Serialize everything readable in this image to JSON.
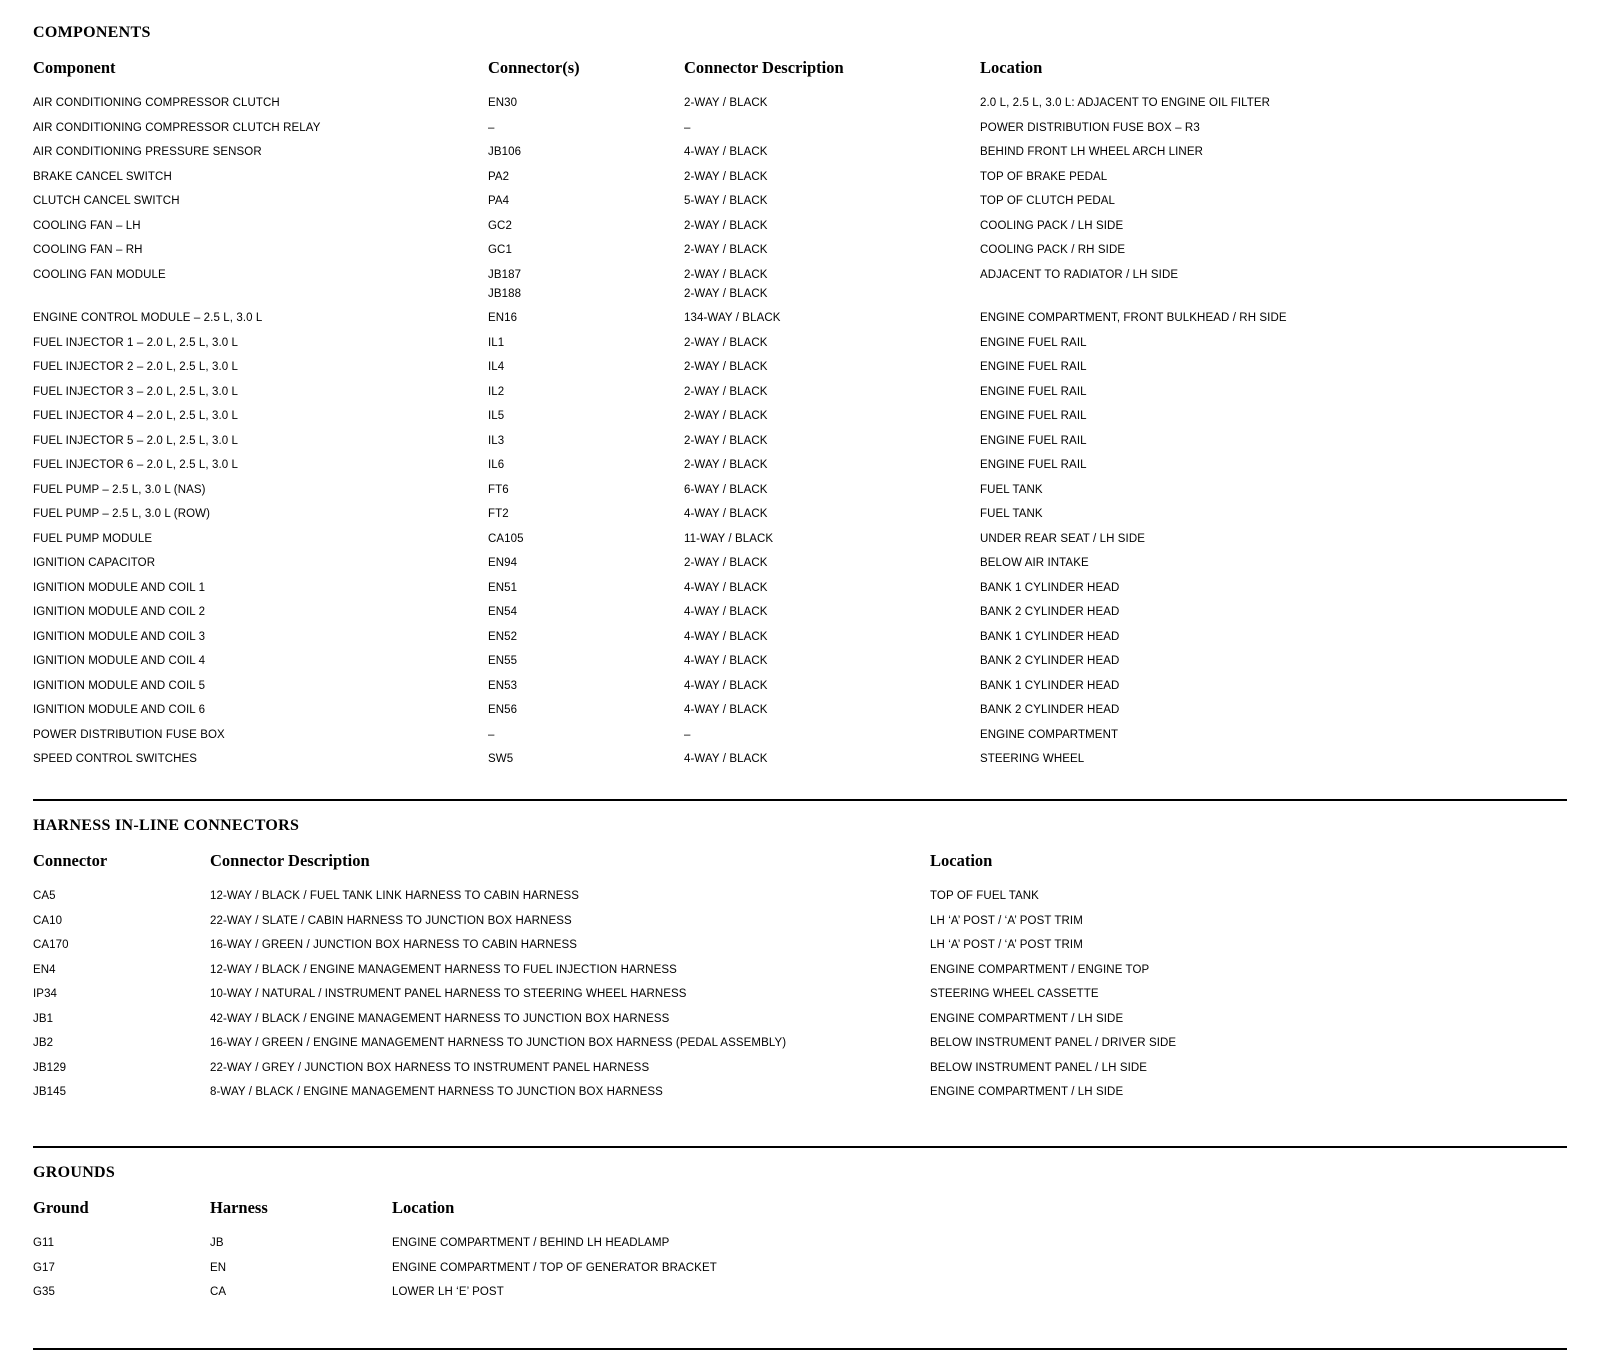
{
  "components": {
    "title": "COMPONENTS",
    "headers": [
      "Component",
      "Connector(s)",
      "Connector Description",
      "Location"
    ],
    "rows": [
      {
        "component": "AIR CONDITIONING COMPRESSOR CLUTCH",
        "connector": "EN30",
        "description": "2-WAY / BLACK",
        "location": "2.0 L, 2.5 L, 3.0 L:  ADJACENT TO ENGINE OIL FILTER"
      },
      {
        "component": "AIR CONDITIONING COMPRESSOR CLUTCH RELAY",
        "connector": "–",
        "description": "–",
        "location": "POWER DISTRIBUTION FUSE BOX – R3"
      },
      {
        "component": "AIR CONDITIONING PRESSURE SENSOR",
        "connector": "JB106",
        "description": "4-WAY / BLACK",
        "location": "BEHIND FRONT LH WHEEL ARCH LINER"
      },
      {
        "component": "BRAKE CANCEL SWITCH",
        "connector": "PA2",
        "description": "2-WAY / BLACK",
        "location": "TOP OF BRAKE PEDAL"
      },
      {
        "component": "CLUTCH CANCEL SWITCH",
        "connector": "PA4",
        "description": "5-WAY / BLACK",
        "location": "TOP OF CLUTCH PEDAL"
      },
      {
        "component": "COOLING FAN – LH",
        "connector": "GC2",
        "description": "2-WAY / BLACK",
        "location": "COOLING PACK / LH SIDE"
      },
      {
        "component": "COOLING FAN – RH",
        "connector": "GC1",
        "description": "2-WAY / BLACK",
        "location": "COOLING PACK / RH SIDE"
      },
      {
        "component": "COOLING FAN MODULE",
        "connector": "JB187\nJB188",
        "description": "2-WAY / BLACK\n2-WAY / BLACK",
        "location": "ADJACENT TO RADIATOR / LH SIDE"
      },
      {
        "component": "ENGINE CONTROL MODULE – 2.5 L, 3.0 L",
        "connector": "EN16",
        "description": "134-WAY / BLACK",
        "location": "ENGINE COMPARTMENT, FRONT BULKHEAD / RH SIDE"
      },
      {
        "component": "FUEL INJECTOR 1 – 2.0 L, 2.5 L, 3.0 L",
        "connector": "IL1",
        "description": "2-WAY / BLACK",
        "location": "ENGINE FUEL RAIL"
      },
      {
        "component": "FUEL INJECTOR 2 – 2.0 L, 2.5 L, 3.0 L",
        "connector": "IL4",
        "description": "2-WAY / BLACK",
        "location": "ENGINE FUEL RAIL"
      },
      {
        "component": "FUEL INJECTOR 3 – 2.0 L, 2.5 L, 3.0 L",
        "connector": "IL2",
        "description": "2-WAY / BLACK",
        "location": "ENGINE FUEL RAIL"
      },
      {
        "component": "FUEL INJECTOR 4 – 2.0 L, 2.5 L, 3.0 L",
        "connector": "IL5",
        "description": "2-WAY / BLACK",
        "location": "ENGINE FUEL RAIL"
      },
      {
        "component": "FUEL INJECTOR 5 – 2.0 L, 2.5 L, 3.0 L",
        "connector": "IL3",
        "description": "2-WAY / BLACK",
        "location": "ENGINE FUEL RAIL"
      },
      {
        "component": "FUEL INJECTOR 6 – 2.0 L, 2.5 L, 3.0 L",
        "connector": "IL6",
        "description": "2-WAY / BLACK",
        "location": "ENGINE FUEL RAIL"
      },
      {
        "component": "FUEL PUMP – 2.5 L, 3.0 L (NAS)",
        "connector": "FT6",
        "description": "6-WAY / BLACK",
        "location": "FUEL TANK"
      },
      {
        "component": "FUEL PUMP – 2.5 L, 3.0 L (ROW)",
        "connector": "FT2",
        "description": "4-WAY / BLACK",
        "location": "FUEL TANK"
      },
      {
        "component": "FUEL PUMP MODULE",
        "connector": "CA105",
        "description": "11-WAY / BLACK",
        "location": "UNDER REAR SEAT / LH SIDE"
      },
      {
        "component": "IGNITION CAPACITOR",
        "connector": "EN94",
        "description": "2-WAY / BLACK",
        "location": "BELOW AIR INTAKE"
      },
      {
        "component": "IGNITION MODULE AND COIL 1",
        "connector": "EN51",
        "description": "4-WAY / BLACK",
        "location": "BANK 1 CYLINDER HEAD"
      },
      {
        "component": "IGNITION MODULE AND COIL 2",
        "connector": "EN54",
        "description": "4-WAY / BLACK",
        "location": "BANK 2 CYLINDER HEAD"
      },
      {
        "component": "IGNITION MODULE AND COIL 3",
        "connector": "EN52",
        "description": "4-WAY / BLACK",
        "location": "BANK 1 CYLINDER HEAD"
      },
      {
        "component": "IGNITION MODULE AND COIL 4",
        "connector": "EN55",
        "description": "4-WAY / BLACK",
        "location": "BANK 2 CYLINDER HEAD"
      },
      {
        "component": "IGNITION MODULE AND COIL 5",
        "connector": "EN53",
        "description": "4-WAY / BLACK",
        "location": "BANK 1 CYLINDER HEAD"
      },
      {
        "component": "IGNITION MODULE AND COIL 6",
        "connector": "EN56",
        "description": "4-WAY / BLACK",
        "location": "BANK 2 CYLINDER HEAD"
      },
      {
        "component": "POWER DISTRIBUTION FUSE BOX",
        "connector": "–",
        "description": "–",
        "location": "ENGINE COMPARTMENT"
      },
      {
        "component": "SPEED CONTROL SWITCHES",
        "connector": "SW5",
        "description": "4-WAY / BLACK",
        "location": "STEERING WHEEL"
      }
    ]
  },
  "harness": {
    "title": "HARNESS IN-LINE CONNECTORS",
    "headers": [
      "Connector",
      "Connector Description",
      "Location"
    ],
    "rows": [
      {
        "connector": "CA5",
        "description": "12-WAY / BLACK / FUEL TANK LINK HARNESS TO CABIN HARNESS",
        "location": "TOP OF FUEL TANK"
      },
      {
        "connector": "CA10",
        "description": "22-WAY / SLATE / CABIN HARNESS TO JUNCTION BOX HARNESS",
        "location": "LH ‘A’ POST / ‘A’ POST TRIM"
      },
      {
        "connector": "CA170",
        "description": "16-WAY / GREEN / JUNCTION BOX HARNESS TO CABIN HARNESS",
        "location": "LH ‘A’ POST / ‘A’ POST TRIM"
      },
      {
        "connector": "EN4",
        "description": "12-WAY / BLACK / ENGINE MANAGEMENT HARNESS TO FUEL INJECTION HARNESS",
        "location": "ENGINE COMPARTMENT / ENGINE TOP"
      },
      {
        "connector": "IP34",
        "description": "10-WAY / NATURAL / INSTRUMENT PANEL HARNESS TO STEERING WHEEL HARNESS",
        "location": "STEERING WHEEL CASSETTE"
      },
      {
        "connector": "JB1",
        "description": "42-WAY / BLACK / ENGINE MANAGEMENT HARNESS TO JUNCTION BOX HARNESS",
        "location": "ENGINE COMPARTMENT / LH SIDE"
      },
      {
        "connector": "JB2",
        "description": "16-WAY / GREEN / ENGINE MANAGEMENT HARNESS TO JUNCTION BOX HARNESS (PEDAL ASSEMBLY)",
        "location": "BELOW INSTRUMENT PANEL / DRIVER SIDE"
      },
      {
        "connector": "JB129",
        "description": "22-WAY / GREY / JUNCTION BOX HARNESS TO INSTRUMENT PANEL HARNESS",
        "location": "BELOW INSTRUMENT PANEL / LH SIDE"
      },
      {
        "connector": "JB145",
        "description": "8-WAY / BLACK / ENGINE MANAGEMENT HARNESS TO JUNCTION BOX HARNESS",
        "location": "ENGINE COMPARTMENT / LH SIDE"
      }
    ]
  },
  "grounds": {
    "title": "GROUNDS",
    "headers": [
      "Ground",
      "Harness",
      "Location"
    ],
    "rows": [
      {
        "ground": "G11",
        "harness": "JB",
        "location": "ENGINE COMPARTMENT / BEHIND LH HEADLAMP"
      },
      {
        "ground": "G17",
        "harness": "EN",
        "location": "ENGINE COMPARTMENT / TOP OF GENERATOR BRACKET"
      },
      {
        "ground": "G35",
        "harness": "CA",
        "location": "LOWER LH ‘E’ POST"
      }
    ]
  }
}
